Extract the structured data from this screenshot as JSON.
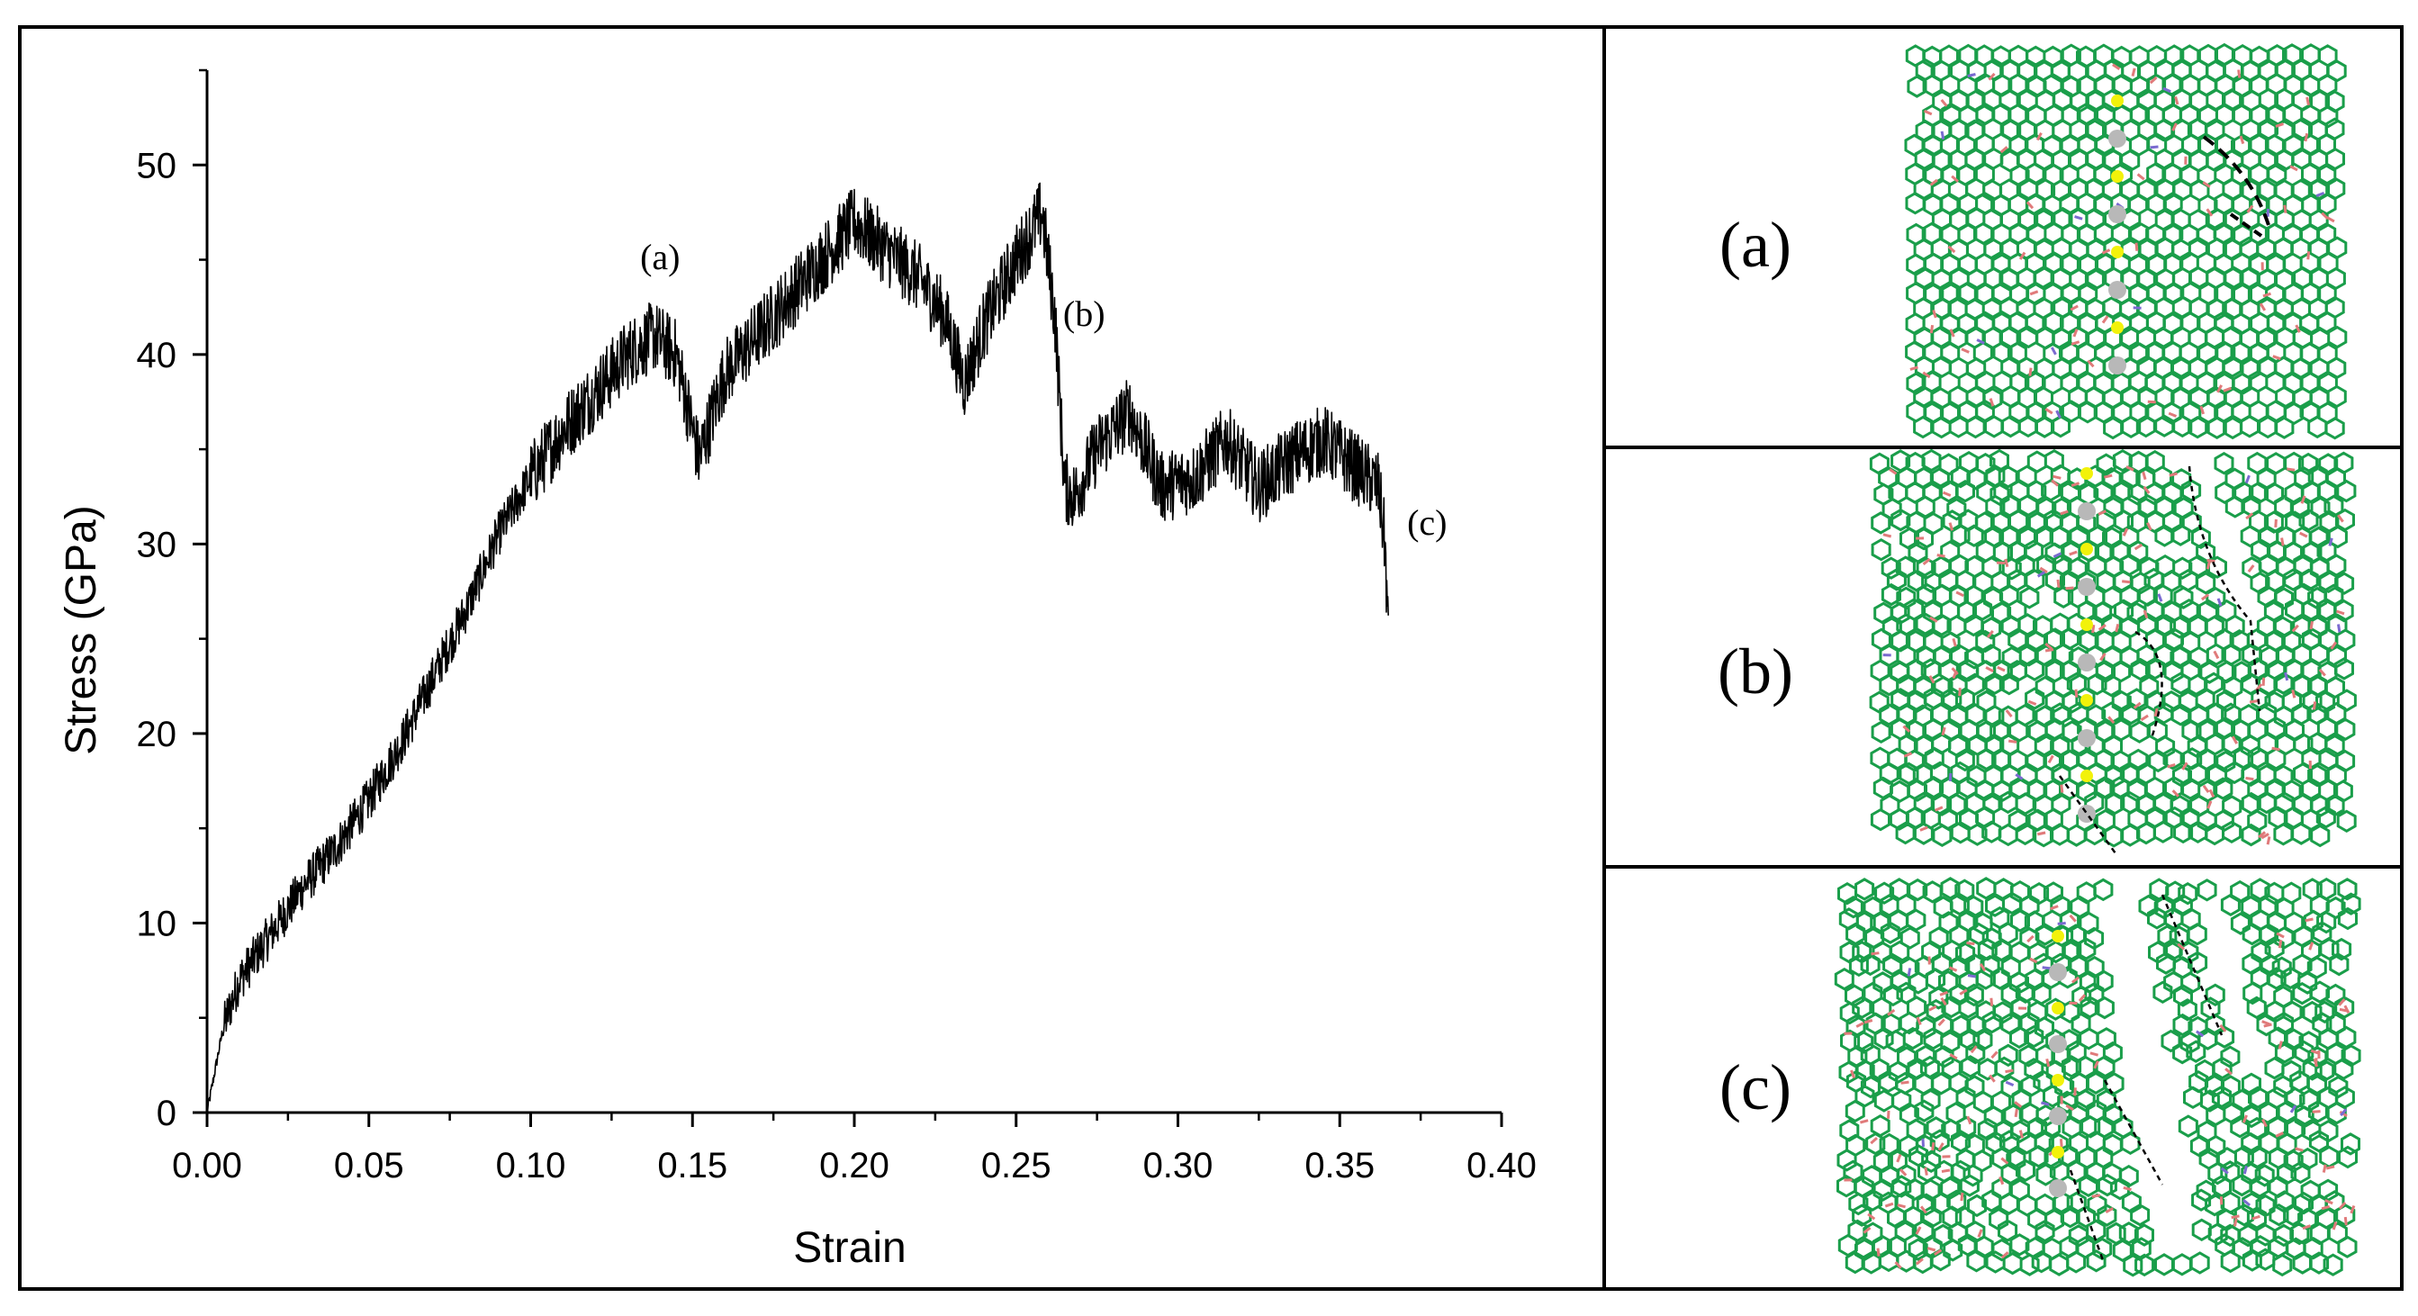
{
  "chart_data": {
    "type": "line",
    "xlabel": "Strain",
    "ylabel": "Stress (GPa)",
    "xlim": [
      0.0,
      0.4
    ],
    "ylim": [
      0,
      55
    ],
    "xticks": [
      "0.00",
      "0.05",
      "0.10",
      "0.15",
      "0.20",
      "0.25",
      "0.30",
      "0.35",
      "0.40"
    ],
    "xtick_values": [
      0.0,
      0.05,
      0.1,
      0.15,
      0.2,
      0.25,
      0.3,
      0.35,
      0.4
    ],
    "yticks": [
      "0",
      "10",
      "20",
      "30",
      "40",
      "50"
    ],
    "ytick_values": [
      0,
      10,
      20,
      30,
      40,
      50
    ],
    "grid": false,
    "line_color": "#000000",
    "series": [
      {
        "name": "",
        "x": [
          0.0,
          0.005,
          0.01,
          0.02,
          0.03,
          0.04,
          0.05,
          0.06,
          0.07,
          0.08,
          0.09,
          0.1,
          0.11,
          0.12,
          0.13,
          0.138,
          0.145,
          0.152,
          0.16,
          0.17,
          0.18,
          0.19,
          0.2,
          0.21,
          0.22,
          0.228,
          0.234,
          0.24,
          0.25,
          0.258,
          0.262,
          0.265,
          0.268,
          0.275,
          0.285,
          0.295,
          0.305,
          0.315,
          0.325,
          0.335,
          0.345,
          0.355,
          0.362,
          0.364,
          0.365
        ],
        "y": [
          0,
          4.5,
          7,
          9.5,
          12,
          14,
          16.5,
          19.5,
          23,
          26.5,
          30.5,
          33.5,
          36,
          38,
          40,
          41,
          40,
          34.5,
          39,
          41,
          43,
          45,
          47,
          45.5,
          44,
          42,
          38.5,
          41.5,
          45,
          47.5,
          42,
          33,
          32.5,
          35,
          37,
          33,
          33.5,
          35.5,
          33,
          34.5,
          35.5,
          34,
          33,
          30,
          25
        ]
      }
    ],
    "annotations": [
      {
        "label": "(a)",
        "x": 0.14,
        "y": 44.5
      },
      {
        "label": "(b)",
        "x": 0.271,
        "y": 41.5
      },
      {
        "label": "(c)",
        "x": 0.377,
        "y": 30.5
      }
    ]
  },
  "panels": [
    {
      "label": "(a)"
    },
    {
      "label": "(b)"
    },
    {
      "label": "(c)"
    }
  ],
  "colors": {
    "bond": "#1a9e4a",
    "bond_dark": "#137a38",
    "oxygen": "#e07a7a",
    "hydrogen": "#7a6ad0",
    "marker_yellow": "#f2f20a",
    "marker_gray": "#b8b8b8",
    "crack_line": "#000000",
    "frame": "#000000"
  }
}
